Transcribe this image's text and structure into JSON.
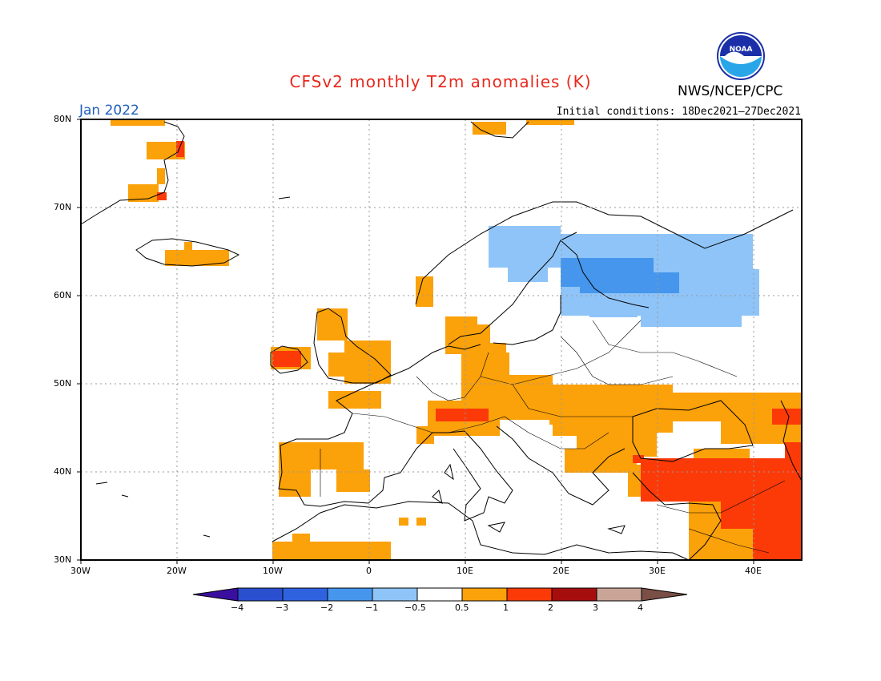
{
  "title": "CFSv2 monthly T2m anomalies (K)",
  "agency": "NWS/NCEP/CPC",
  "logo_text": "NOAA",
  "month": "Jan 2022",
  "initial_conditions": "Initial conditions: 18Dec2021–27Dec2021",
  "lat_labels": [
    "80N",
    "70N",
    "60N",
    "50N",
    "40N",
    "30N"
  ],
  "lon_labels": [
    "30W",
    "20W",
    "10W",
    "0",
    "10E",
    "20E",
    "30E",
    "40E"
  ],
  "legend": {
    "labels": [
      "−4",
      "−3",
      "−2",
      "−1",
      "−0.5",
      "0.5",
      "1",
      "2",
      "3",
      "4"
    ],
    "colors": [
      "#3a0fa0",
      "#2a4fcf",
      "#2e62df",
      "#4596ec",
      "#8fc4f8",
      "#ffffff",
      "#fba10a",
      "#fb3a08",
      "#a60e0e",
      "#c9a598",
      "#7a4f46"
    ]
  },
  "anomaly_colors": {
    "cold_light": "#8fc4f8",
    "cold_medium": "#4596ec",
    "warm_light": "#fba10a",
    "warm_medium": "#fb3a08"
  }
}
